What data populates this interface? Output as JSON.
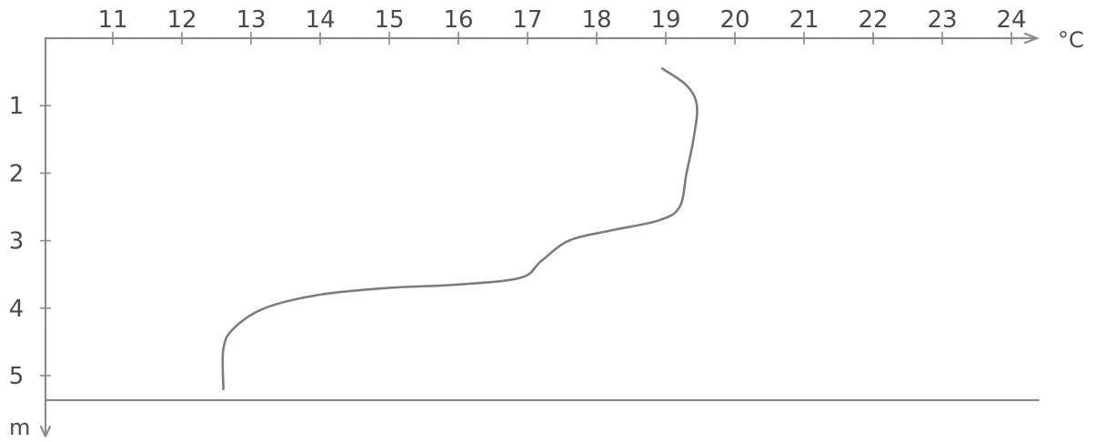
{
  "chart_data": {
    "type": "line",
    "title": "",
    "xlabel": "°C",
    "ylabel": "m",
    "x_axis_position": "top",
    "y_axis_direction": "downward",
    "xlim": [
      10,
      24.5
    ],
    "ylim": [
      0,
      5.2
    ],
    "x_ticks": [
      "11",
      "12",
      "13",
      "14",
      "15",
      "16",
      "17",
      "18",
      "19",
      "20",
      "21",
      "22",
      "23",
      "24"
    ],
    "y_ticks": [
      "1",
      "2",
      "3",
      "4",
      "5"
    ],
    "grid": false,
    "legend": "none",
    "series": [
      {
        "color": "#7c7c7c",
        "points": [
          {
            "temperature": 18.95,
            "depth": 0.45
          },
          {
            "temperature": 19.3,
            "depth": 0.7
          },
          {
            "temperature": 19.45,
            "depth": 1.0
          },
          {
            "temperature": 19.4,
            "depth": 1.5
          },
          {
            "temperature": 19.3,
            "depth": 2.0
          },
          {
            "temperature": 19.2,
            "depth": 2.5
          },
          {
            "temperature": 18.9,
            "depth": 2.7
          },
          {
            "temperature": 18.2,
            "depth": 2.85
          },
          {
            "temperature": 17.6,
            "depth": 3.0
          },
          {
            "temperature": 17.2,
            "depth": 3.3
          },
          {
            "temperature": 16.9,
            "depth": 3.55
          },
          {
            "temperature": 16.0,
            "depth": 3.65
          },
          {
            "temperature": 15.0,
            "depth": 3.7
          },
          {
            "temperature": 14.0,
            "depth": 3.8
          },
          {
            "temperature": 13.2,
            "depth": 4.0
          },
          {
            "temperature": 12.75,
            "depth": 4.3
          },
          {
            "temperature": 12.6,
            "depth": 4.6
          },
          {
            "temperature": 12.6,
            "depth": 5.2
          }
        ]
      }
    ]
  }
}
